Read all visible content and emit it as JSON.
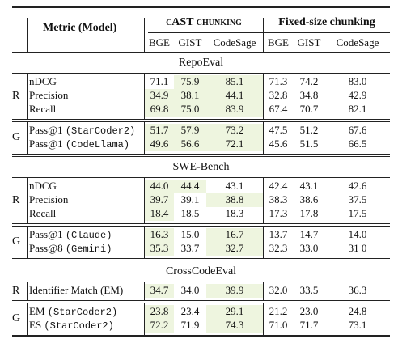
{
  "header": {
    "metric_model": "Metric (Model)",
    "cast_group": "cAST chunking",
    "fixed_group": "Fixed-size chunking",
    "cast_cols": [
      "BGE",
      "GIST",
      "CodeSage"
    ],
    "fixed_cols": [
      "BGE",
      "GIST",
      "CodeSage"
    ]
  },
  "sections": [
    {
      "title": "RepoEval",
      "groups": [
        {
          "tag": "R",
          "rows": [
            {
              "metric": "nDCG",
              "model": "",
              "cast": [
                "71.1",
                "75.9",
                "85.1"
              ],
              "fixed": [
                "71.3",
                "74.2",
                "83.0"
              ],
              "hl": [
                false,
                true,
                true
              ]
            },
            {
              "metric": "Precision",
              "model": "",
              "cast": [
                "34.9",
                "38.1",
                "44.1"
              ],
              "fixed": [
                "32.8",
                "34.8",
                "42.9"
              ],
              "hl": [
                true,
                true,
                true
              ]
            },
            {
              "metric": "Recall",
              "model": "",
              "cast": [
                "69.8",
                "75.0",
                "83.9"
              ],
              "fixed": [
                "67.4",
                "70.7",
                "82.1"
              ],
              "hl": [
                true,
                true,
                true
              ]
            }
          ]
        },
        {
          "tag": "G",
          "rows": [
            {
              "metric": "Pass@1 ",
              "model": "(StarCoder2)",
              "cast": [
                "51.7",
                "57.9",
                "73.2"
              ],
              "fixed": [
                "47.5",
                "51.2",
                "67.6"
              ],
              "hl": [
                true,
                true,
                true
              ]
            },
            {
              "metric": "Pass@1 ",
              "model": "(CodeLlama)",
              "cast": [
                "49.6",
                "56.6",
                "72.1"
              ],
              "fixed": [
                "45.6",
                "51.5",
                "66.5"
              ],
              "hl": [
                true,
                true,
                true
              ]
            }
          ]
        }
      ]
    },
    {
      "title": "SWE-Bench",
      "groups": [
        {
          "tag": "R",
          "rows": [
            {
              "metric": "nDCG",
              "model": "",
              "cast": [
                "44.0",
                "44.4",
                "43.1"
              ],
              "fixed": [
                "42.4",
                "43.1",
                "42.6"
              ],
              "hl": [
                true,
                true,
                false
              ]
            },
            {
              "metric": "Precision",
              "model": "",
              "cast": [
                "39.7",
                "39.1",
                "38.8"
              ],
              "fixed": [
                "38.3",
                "38.6",
                "37.5"
              ],
              "hl": [
                true,
                false,
                true
              ]
            },
            {
              "metric": "Recall",
              "model": "",
              "cast": [
                "18.4",
                "18.5",
                "18.3"
              ],
              "fixed": [
                "17.3",
                "17.8",
                "17.5"
              ],
              "hl": [
                true,
                false,
                false
              ]
            }
          ]
        },
        {
          "tag": "G",
          "rows": [
            {
              "metric": "Pass@1 ",
              "model": "(Claude)",
              "cast": [
                "16.3",
                "15.0",
                "16.7"
              ],
              "fixed": [
                "13.7",
                "14.7",
                "14.0"
              ],
              "hl": [
                true,
                false,
                true
              ]
            },
            {
              "metric": "Pass@8 ",
              "model": "(Gemini)",
              "cast": [
                "35.3",
                "33.7",
                "32.7"
              ],
              "fixed": [
                "32.3",
                "33.0",
                "31 0"
              ],
              "hl": [
                true,
                false,
                true
              ]
            }
          ]
        }
      ]
    },
    {
      "title": "CrossCodeEval",
      "groups": [
        {
          "tag": "R",
          "rows": [
            {
              "metric": "Identifier Match (EM)",
              "model": "",
              "cast": [
                "34.7",
                "34.0",
                "39.9"
              ],
              "fixed": [
                "32.0",
                "33.5",
                "36.3"
              ],
              "hl": [
                true,
                false,
                true
              ]
            }
          ]
        },
        {
          "tag": "G",
          "rows": [
            {
              "metric": "EM ",
              "model": "(StarCoder2)",
              "cast": [
                "23.8",
                "23.4",
                "29.1"
              ],
              "fixed": [
                "21.2",
                "23.0",
                "24.8"
              ],
              "hl": [
                true,
                false,
                true
              ]
            },
            {
              "metric": "ES ",
              "model": "(StarCoder2)",
              "cast": [
                "72.2",
                "71.9",
                "74.3"
              ],
              "fixed": [
                "71.0",
                "71.7",
                "73.1"
              ],
              "hl": [
                true,
                false,
                true
              ]
            }
          ]
        }
      ]
    }
  ]
}
